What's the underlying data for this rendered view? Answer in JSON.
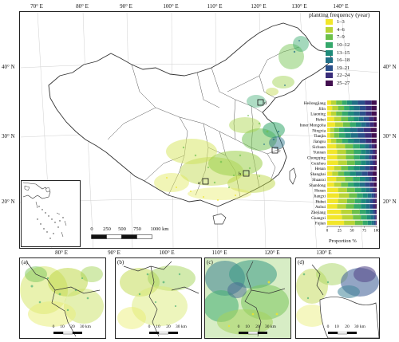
{
  "axes": {
    "top_lon": [
      "70° E",
      "80° E",
      "90° E",
      "100° E",
      "110° E",
      "120° E",
      "130° E",
      "140° E"
    ],
    "bottom_lon": [
      "80° E",
      "90° E",
      "100° E",
      "110° E",
      "120° E",
      "130° E"
    ],
    "left_lat": [
      "40° N",
      "30° N",
      "20° N"
    ],
    "right_lat": [
      "40° N",
      "30° N",
      "20° N"
    ]
  },
  "legend": {
    "title": "planting frequency (year)",
    "classes": [
      {
        "label": "1–3",
        "color": "#f2e62a"
      },
      {
        "label": "4–6",
        "color": "#b8d436"
      },
      {
        "label": "7–9",
        "color": "#6cc04a"
      },
      {
        "label": "10–12",
        "color": "#35a86b"
      },
      {
        "label": "13–15",
        "color": "#1e8b7a"
      },
      {
        "label": "16–18",
        "color": "#216f86"
      },
      {
        "label": "19–21",
        "color": "#2b4f8a"
      },
      {
        "label": "22–24",
        "color": "#3a2d7a"
      },
      {
        "label": "25–27",
        "color": "#420f4f"
      }
    ]
  },
  "province_chart": {
    "xlabel": "Proportion %",
    "ticks": [
      "0",
      "25",
      "50",
      "75",
      "100"
    ],
    "provinces": [
      {
        "name": "Heilongjiang",
        "values": [
          8,
          10,
          12,
          10,
          10,
          12,
          14,
          14,
          10
        ]
      },
      {
        "name": "Jilin",
        "values": [
          10,
          12,
          12,
          10,
          10,
          12,
          12,
          12,
          10
        ]
      },
      {
        "name": "Liaoning",
        "values": [
          8,
          10,
          12,
          12,
          12,
          12,
          12,
          12,
          10
        ]
      },
      {
        "name": "Hebei",
        "values": [
          14,
          14,
          14,
          12,
          10,
          10,
          10,
          10,
          6
        ]
      },
      {
        "name": "Inner Mongolia",
        "values": [
          16,
          16,
          14,
          12,
          10,
          10,
          8,
          8,
          6
        ]
      },
      {
        "name": "Ningxia",
        "values": [
          6,
          8,
          10,
          10,
          12,
          14,
          14,
          14,
          12
        ]
      },
      {
        "name": "Tianjin",
        "values": [
          6,
          8,
          10,
          12,
          12,
          14,
          14,
          14,
          10
        ]
      },
      {
        "name": "Jiangsu",
        "values": [
          8,
          10,
          12,
          12,
          12,
          12,
          12,
          12,
          10
        ]
      },
      {
        "name": "Sichuan",
        "values": [
          18,
          18,
          16,
          14,
          10,
          8,
          6,
          6,
          4
        ]
      },
      {
        "name": "Yunnan",
        "values": [
          20,
          18,
          16,
          14,
          10,
          8,
          6,
          5,
          3
        ]
      },
      {
        "name": "Chongqing",
        "values": [
          20,
          18,
          16,
          12,
          10,
          8,
          6,
          6,
          4
        ]
      },
      {
        "name": "Guizhou",
        "values": [
          22,
          18,
          16,
          12,
          10,
          8,
          6,
          5,
          3
        ]
      },
      {
        "name": "Henan",
        "values": [
          14,
          14,
          14,
          12,
          12,
          10,
          10,
          8,
          6
        ]
      },
      {
        "name": "Shanghai",
        "values": [
          10,
          12,
          12,
          12,
          12,
          12,
          12,
          10,
          8
        ]
      },
      {
        "name": "Shaanxi",
        "values": [
          18,
          18,
          16,
          14,
          10,
          8,
          6,
          6,
          4
        ]
      },
      {
        "name": "Shandong",
        "values": [
          14,
          14,
          14,
          12,
          12,
          10,
          10,
          8,
          6
        ]
      },
      {
        "name": "Hunan",
        "values": [
          22,
          18,
          16,
          12,
          10,
          8,
          6,
          5,
          3
        ]
      },
      {
        "name": "Jiangxi",
        "values": [
          24,
          20,
          16,
          12,
          10,
          8,
          5,
          3,
          2
        ]
      },
      {
        "name": "Hubei",
        "values": [
          22,
          18,
          16,
          12,
          10,
          8,
          6,
          5,
          3
        ]
      },
      {
        "name": "Anhui",
        "values": [
          20,
          18,
          16,
          14,
          10,
          8,
          6,
          5,
          3
        ]
      },
      {
        "name": "Zhejiang",
        "values": [
          28,
          22,
          16,
          12,
          8,
          6,
          4,
          3,
          1
        ]
      },
      {
        "name": "Guangxi",
        "values": [
          30,
          22,
          16,
          12,
          8,
          6,
          3,
          2,
          1
        ]
      },
      {
        "name": "Fujian",
        "values": [
          34,
          22,
          16,
          10,
          8,
          5,
          3,
          1,
          1
        ]
      }
    ]
  },
  "scale_bar": {
    "labels": [
      "0",
      "250",
      "500",
      "750",
      "1000 km"
    ]
  },
  "panels": [
    {
      "label": "(a)",
      "scale": [
        "0",
        "10",
        "20",
        "30 km"
      ]
    },
    {
      "label": "(b)",
      "scale": [
        "0",
        "10",
        "20",
        "30 km"
      ]
    },
    {
      "label": "(c)",
      "scale": [
        "0",
        "10",
        "20",
        "30 km"
      ]
    },
    {
      "label": "(d)",
      "scale": [
        "0",
        "10",
        "20",
        "30 km"
      ]
    }
  ],
  "map_boxes": [
    "a",
    "b",
    "c",
    "d"
  ]
}
